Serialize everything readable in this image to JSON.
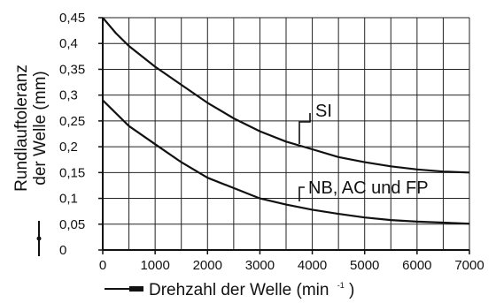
{
  "chart_data": {
    "type": "line",
    "title": "",
    "ylabel_line1": "Rundlauftoleranz",
    "ylabel_line2": "der Welle (mm)",
    "xlabel_main": "Drehzahl der Welle (min",
    "xlabel_sup": "-1",
    "xlabel_close": ")",
    "xlim": [
      0,
      7000
    ],
    "ylim": [
      0,
      0.45
    ],
    "xticks": [
      0,
      1000,
      2000,
      3000,
      4000,
      5000,
      6000,
      7000
    ],
    "xtick_labels": [
      "0",
      "1000",
      "2000",
      "3000",
      "4000",
      "5000",
      "6000",
      "7000"
    ],
    "yticks": [
      0,
      0.05,
      0.1,
      0.15,
      0.2,
      0.25,
      0.3,
      0.35,
      0.4,
      0.45
    ],
    "ytick_labels": [
      "0",
      "0,05",
      "0,1",
      "0,15",
      "0,2",
      "0,25",
      "0,3",
      "0,35",
      "0,4",
      "0,45"
    ],
    "grid": true,
    "series": [
      {
        "name": "SI",
        "x": [
          0,
          250,
          500,
          1000,
          1500,
          2000,
          2500,
          3000,
          3500,
          4000,
          4500,
          5000,
          5500,
          6000,
          6500,
          7000
        ],
        "y": [
          0.45,
          0.42,
          0.395,
          0.355,
          0.32,
          0.285,
          0.255,
          0.23,
          0.21,
          0.195,
          0.18,
          0.17,
          0.162,
          0.156,
          0.152,
          0.15
        ]
      },
      {
        "name": "NB, AC und FP",
        "x": [
          0,
          250,
          500,
          1000,
          1500,
          2000,
          2500,
          3000,
          3500,
          4000,
          4500,
          5000,
          5500,
          6000,
          6500,
          7000
        ],
        "y": [
          0.29,
          0.265,
          0.24,
          0.205,
          0.17,
          0.14,
          0.12,
          0.1,
          0.088,
          0.078,
          0.07,
          0.063,
          0.058,
          0.055,
          0.053,
          0.051
        ]
      }
    ]
  }
}
